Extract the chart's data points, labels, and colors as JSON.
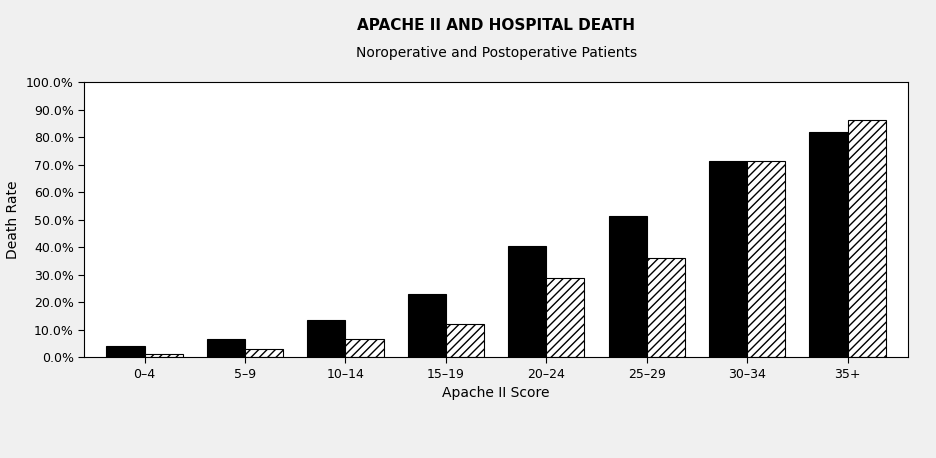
{
  "title": "APACHE II AND HOSPITAL DEATH",
  "subtitle": "Noroperative and Postoperative Patients",
  "xlabel": "Apache II Score",
  "ylabel": "Death Rate",
  "categories": [
    "0–4",
    "5–9",
    "10–14",
    "15–19",
    "20–24",
    "25–29",
    "30–34",
    "35+"
  ],
  "nonoperative": [
    0.04,
    0.065,
    0.135,
    0.23,
    0.405,
    0.515,
    0.715,
    0.82
  ],
  "postoperative": [
    0.01,
    0.03,
    0.065,
    0.12,
    0.29,
    0.36,
    0.715,
    0.865
  ],
  "ylim": [
    0,
    1.0
  ],
  "yticks": [
    0.0,
    0.1,
    0.2,
    0.3,
    0.4,
    0.5,
    0.6,
    0.7,
    0.8,
    0.9,
    1.0
  ],
  "ytick_labels": [
    "0.0%",
    "10.0%",
    "20.0%",
    "30.0%",
    "40.0%",
    "50.0%",
    "60.0%",
    "70.0%",
    "80.0%",
    "90.0%",
    "100.0%"
  ],
  "nonop_color": "#000000",
  "postop_color": "#ffffff",
  "postop_hatch": "////",
  "bar_width": 0.38,
  "background_color": "#f0f0f0",
  "title_fontsize": 11,
  "subtitle_fontsize": 10,
  "axis_fontsize": 10,
  "tick_fontsize": 9,
  "legend_fontsize": 10
}
